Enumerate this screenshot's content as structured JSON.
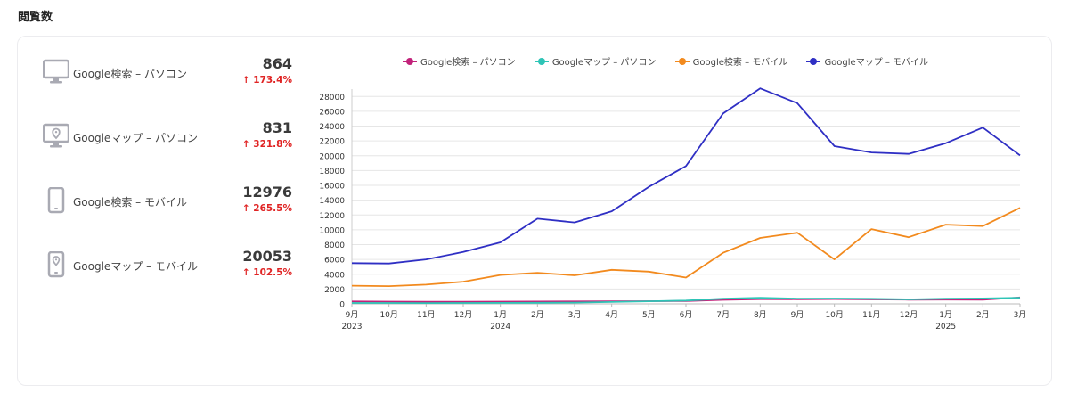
{
  "page": {
    "section_title": "閲覧数"
  },
  "metrics": [
    {
      "icon": "desktop-icon",
      "label": "Google検索 – パソコン",
      "value": "864",
      "change": "↑ 173.4%"
    },
    {
      "icon": "desktop-map-pin-icon",
      "label": "Googleマップ – パソコン",
      "value": "831",
      "change": "↑ 321.8%"
    },
    {
      "icon": "smartphone-icon",
      "label": "Google検索 – モバイル",
      "value": "12976",
      "change": "↑ 265.5%"
    },
    {
      "icon": "smartphone-map-pin-icon",
      "label": "Googleマップ – モバイル",
      "value": "20053",
      "change": "↑ 102.5%"
    }
  ],
  "colors": {
    "change_up": "#e02424",
    "icon": "#a9aab3"
  },
  "chart_data": {
    "type": "line",
    "categories": [
      "9月",
      "10月",
      "11月",
      "12月",
      "1月",
      "2月",
      "3月",
      "4月",
      "5月",
      "6月",
      "7月",
      "8月",
      "9月",
      "10月",
      "11月",
      "12月",
      "1月",
      "2月",
      "3月"
    ],
    "year_labels": [
      {
        "index": 0,
        "label": "2023"
      },
      {
        "index": 4,
        "label": "2024"
      },
      {
        "index": 16,
        "label": "2025"
      }
    ],
    "ylim": [
      0,
      29000
    ],
    "yticks": [
      0,
      2000,
      4000,
      6000,
      8000,
      10000,
      12000,
      14000,
      16000,
      18000,
      20000,
      22000,
      24000,
      26000,
      28000
    ],
    "grid": true,
    "legend_position": "top",
    "series": [
      {
        "name": "Google検索 – パソコン",
        "color": "#c2227a",
        "values": [
          330,
          300,
          280,
          290,
          300,
          310,
          320,
          340,
          360,
          380,
          540,
          640,
          630,
          650,
          600,
          560,
          580,
          560,
          864
        ]
      },
      {
        "name": "Googleマップ – パソコン",
        "color": "#2ec4b6",
        "values": [
          120,
          120,
          110,
          120,
          130,
          150,
          170,
          250,
          350,
          450,
          700,
          830,
          710,
          720,
          680,
          600,
          700,
          730,
          831
        ]
      },
      {
        "name": "Google検索 – モバイル",
        "color": "#f28a1e",
        "values": [
          2450,
          2400,
          2600,
          3000,
          3900,
          4200,
          3850,
          4600,
          4350,
          3550,
          6900,
          8900,
          9600,
          6000,
          10100,
          9000,
          10700,
          10500,
          12976
        ]
      },
      {
        "name": "Googleマップ – モバイル",
        "color": "#2f2fc4",
        "values": [
          5500,
          5450,
          6000,
          7000,
          8300,
          11500,
          11000,
          12500,
          15800,
          18600,
          25700,
          29100,
          27100,
          21300,
          20450,
          20250,
          21700,
          23800,
          20053
        ]
      }
    ]
  }
}
